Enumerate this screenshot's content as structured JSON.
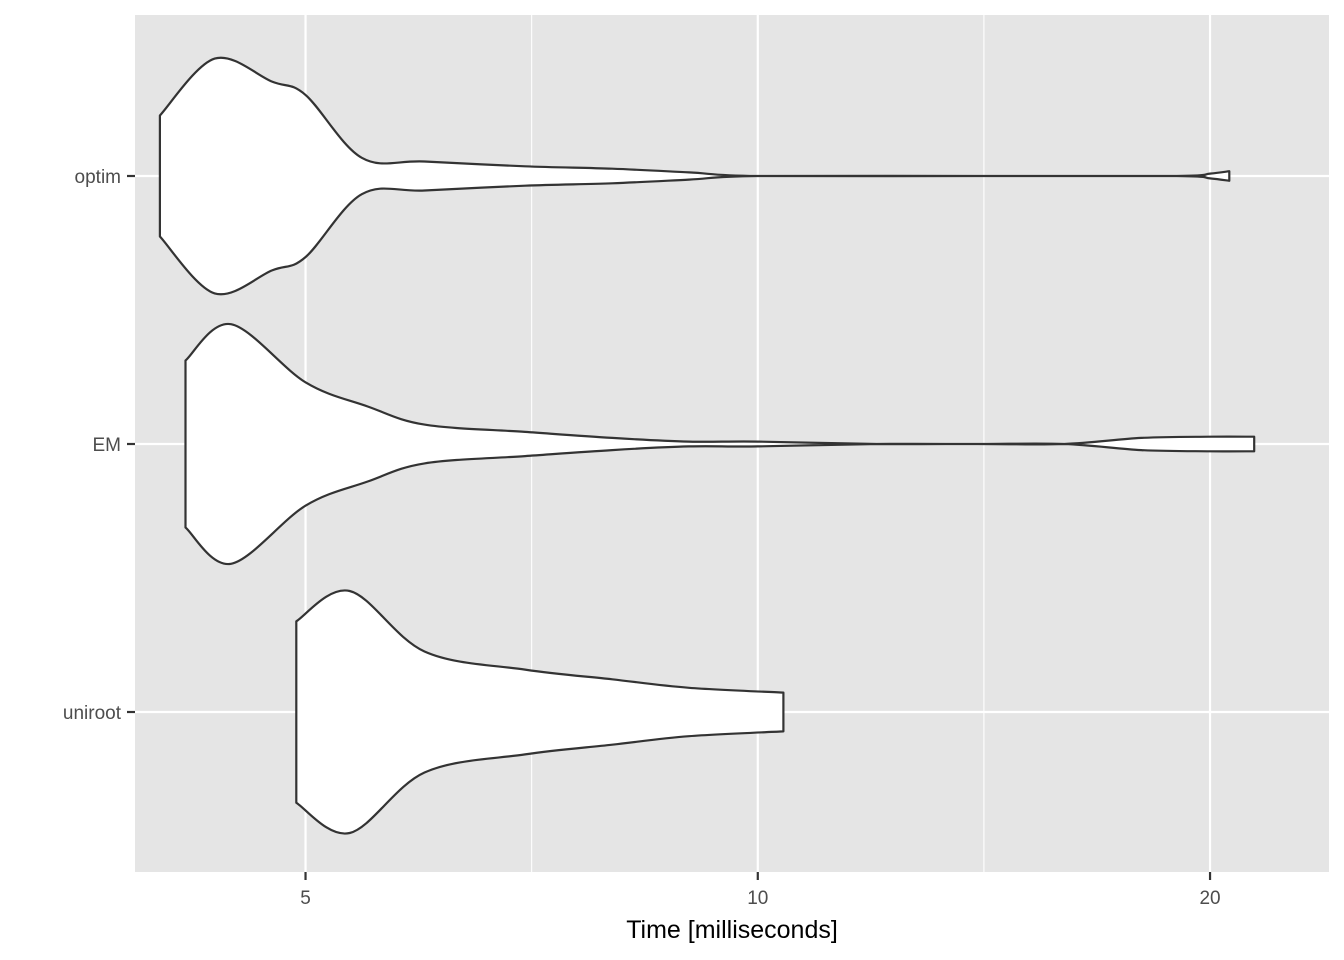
{
  "chart_data": {
    "type": "violin",
    "orientation": "horizontal",
    "xlabel": "Time [milliseconds]",
    "ylabel": "",
    "x_scale": "log10",
    "xlim": [
      3.85,
      24.0
    ],
    "x_ticks": [
      5,
      10,
      20
    ],
    "x_tick_labels": [
      "5",
      "10",
      "20"
    ],
    "categories": [
      "optim",
      "EM",
      "uniroot"
    ],
    "grid": true,
    "background": "#e5e5e5",
    "grid_color": "#ffffff",
    "violin_fill": "#ffffff",
    "violin_stroke": "#333333",
    "series": [
      {
        "name": "optim",
        "profile": [
          [
            4.0,
            0.5
          ],
          [
            4.35,
            0.97
          ],
          [
            4.75,
            0.78
          ],
          [
            5.0,
            0.67
          ],
          [
            5.45,
            0.15
          ],
          [
            6.0,
            0.12
          ],
          [
            7.0,
            0.08
          ],
          [
            8.0,
            0.06
          ],
          [
            9.0,
            0.03
          ],
          [
            10.0,
            0.0
          ],
          [
            14.0,
            0.0
          ],
          [
            19.0,
            0.0
          ],
          [
            20.0,
            0.02
          ],
          [
            20.6,
            0.04
          ]
        ]
      },
      {
        "name": "EM",
        "profile": [
          [
            4.16,
            0.69
          ],
          [
            4.46,
            0.99
          ],
          [
            5.0,
            0.51
          ],
          [
            5.5,
            0.31
          ],
          [
            6.0,
            0.16
          ],
          [
            7.0,
            0.1
          ],
          [
            8.0,
            0.05
          ],
          [
            9.0,
            0.02
          ],
          [
            10.0,
            0.02
          ],
          [
            12.0,
            0.0
          ],
          [
            14.0,
            0.0
          ],
          [
            16.0,
            0.0
          ],
          [
            18.0,
            0.05
          ],
          [
            20.0,
            0.06
          ],
          [
            21.4,
            0.06
          ]
        ]
      },
      {
        "name": "uniroot",
        "profile": [
          [
            4.93,
            0.75
          ],
          [
            5.35,
            1.0
          ],
          [
            6.0,
            0.5
          ],
          [
            7.0,
            0.35
          ],
          [
            8.0,
            0.27
          ],
          [
            9.0,
            0.2
          ],
          [
            10.4,
            0.16
          ]
        ]
      }
    ]
  }
}
